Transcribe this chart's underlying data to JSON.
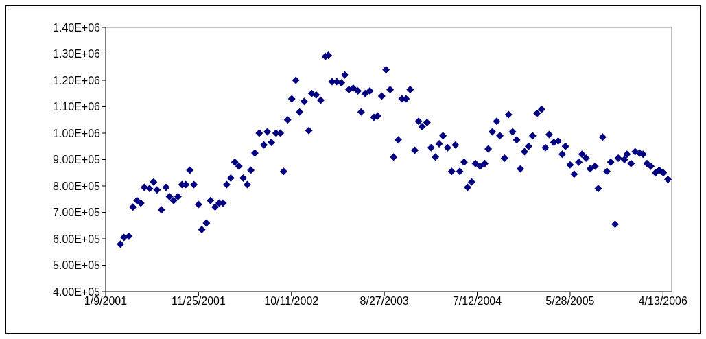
{
  "chart_data": {
    "type": "scatter",
    "marker": "diamond",
    "grid": false,
    "legend": false,
    "xlim": [
      "2001-01-09",
      "2006-05-13"
    ],
    "xticks": [
      {
        "value": "2001-01-09",
        "label": "1/9/2001"
      },
      {
        "value": "2001-11-25",
        "label": "11/25/2001"
      },
      {
        "value": "2002-10-11",
        "label": "10/11/2002"
      },
      {
        "value": "2003-08-27",
        "label": "8/27/2003"
      },
      {
        "value": "2004-07-12",
        "label": "7/12/2004"
      },
      {
        "value": "2005-05-28",
        "label": "5/28/2005"
      },
      {
        "value": "2006-04-13",
        "label": "4/13/2006"
      }
    ],
    "ylim": [
      400000,
      1400000
    ],
    "yticks": [
      {
        "value": 400000,
        "label": "4.00E+05"
      },
      {
        "value": 500000,
        "label": "5.00E+05"
      },
      {
        "value": 600000,
        "label": "6.00E+05"
      },
      {
        "value": 700000,
        "label": "7.00E+05"
      },
      {
        "value": 800000,
        "label": "8.00E+05"
      },
      {
        "value": 900000,
        "label": "9.00E+05"
      },
      {
        "value": 1000000,
        "label": "1.00E+06"
      },
      {
        "value": 1100000,
        "label": "1.10E+06"
      },
      {
        "value": 1200000,
        "label": "1.20E+06"
      },
      {
        "value": 1300000,
        "label": "1.30E+06"
      },
      {
        "value": 1400000,
        "label": "1.40E+06"
      }
    ],
    "series": [
      {
        "color": "#000080",
        "x": [
          "2001-03-01",
          "2001-03-13",
          "2001-03-30",
          "2001-04-13",
          "2001-04-27",
          "2001-05-10",
          "2001-05-22",
          "2001-06-09",
          "2001-06-23",
          "2001-07-05",
          "2001-07-20",
          "2001-08-05",
          "2001-08-17",
          "2001-08-31",
          "2001-09-15",
          "2001-09-29",
          "2001-10-12",
          "2001-10-26",
          "2001-11-09",
          "2001-11-25",
          "2001-12-06",
          "2001-12-22",
          "2002-01-05",
          "2002-01-21",
          "2002-02-04",
          "2002-02-17",
          "2002-03-02",
          "2002-03-16",
          "2002-03-30",
          "2002-04-13",
          "2002-04-28",
          "2002-05-12",
          "2002-05-24",
          "2002-06-07",
          "2002-06-22",
          "2002-07-08",
          "2002-07-20",
          "2002-08-03",
          "2002-08-19",
          "2002-09-03",
          "2002-09-14",
          "2002-09-28",
          "2002-10-12",
          "2002-10-26",
          "2002-11-08",
          "2002-11-24",
          "2002-12-10",
          "2002-12-20",
          "2003-01-04",
          "2003-01-20",
          "2003-02-05",
          "2003-02-15",
          "2003-02-28",
          "2003-03-16",
          "2003-04-01",
          "2003-04-13",
          "2003-04-27",
          "2003-05-12",
          "2003-05-28",
          "2003-06-08",
          "2003-06-22",
          "2003-07-08",
          "2003-07-22",
          "2003-08-04",
          "2003-08-18",
          "2003-09-02",
          "2003-09-16",
          "2003-09-28",
          "2003-10-14",
          "2003-10-27",
          "2003-11-10",
          "2003-11-24",
          "2003-12-10",
          "2003-12-23",
          "2004-01-04",
          "2004-01-21",
          "2004-02-04",
          "2004-02-19",
          "2004-03-03",
          "2004-03-16",
          "2004-04-01",
          "2004-04-15",
          "2004-04-28",
          "2004-05-13",
          "2004-05-28",
          "2004-06-09",
          "2004-06-23",
          "2004-07-06",
          "2004-07-22",
          "2004-08-07",
          "2004-08-19",
          "2004-09-02",
          "2004-09-17",
          "2004-09-28",
          "2004-10-14",
          "2004-10-28",
          "2004-11-11",
          "2004-11-25",
          "2004-12-08",
          "2004-12-22",
          "2005-01-05",
          "2005-01-19",
          "2005-02-03",
          "2005-02-19",
          "2005-03-04",
          "2005-03-17",
          "2005-04-02",
          "2005-04-17",
          "2005-05-01",
          "2005-05-12",
          "2005-05-28",
          "2005-06-11",
          "2005-06-27",
          "2005-07-08",
          "2005-07-22",
          "2005-08-05",
          "2005-08-22",
          "2005-09-02",
          "2005-09-17",
          "2005-10-02",
          "2005-10-15",
          "2005-10-30",
          "2005-11-10",
          "2005-12-01",
          "2005-12-10",
          "2005-12-24",
          "2006-01-07",
          "2006-01-22",
          "2006-02-03",
          "2006-02-17",
          "2006-03-02",
          "2006-03-18",
          "2006-03-31",
          "2006-04-14",
          "2006-04-30"
        ],
        "values": [
          580000,
          605000,
          610000,
          720000,
          745000,
          735000,
          795000,
          790000,
          815000,
          785000,
          710000,
          795000,
          760000,
          745000,
          760000,
          805000,
          805000,
          860000,
          805000,
          730000,
          635000,
          660000,
          745000,
          720000,
          735000,
          735000,
          805000,
          830000,
          890000,
          875000,
          830000,
          805000,
          860000,
          925000,
          1000000,
          955000,
          1005000,
          965000,
          1000000,
          1000000,
          855000,
          1050000,
          1130000,
          1200000,
          1080000,
          1120000,
          1010000,
          1150000,
          1145000,
          1125000,
          1290000,
          1295000,
          1195000,
          1195000,
          1190000,
          1220000,
          1165000,
          1170000,
          1160000,
          1080000,
          1150000,
          1160000,
          1060000,
          1065000,
          1140000,
          1240000,
          1165000,
          910000,
          975000,
          1130000,
          1130000,
          1165000,
          935000,
          1045000,
          1025000,
          1040000,
          945000,
          910000,
          960000,
          990000,
          945000,
          855000,
          955000,
          855000,
          890000,
          795000,
          815000,
          885000,
          875000,
          885000,
          940000,
          1005000,
          1045000,
          990000,
          905000,
          1070000,
          1005000,
          975000,
          865000,
          930000,
          950000,
          990000,
          1075000,
          1090000,
          945000,
          995000,
          965000,
          970000,
          920000,
          950000,
          880000,
          845000,
          890000,
          920000,
          905000,
          865000,
          875000,
          790000,
          985000,
          855000,
          890000,
          655000,
          905000,
          900000,
          920000,
          885000,
          930000,
          925000,
          920000,
          885000,
          875000,
          850000,
          860000,
          850000,
          825000
        ]
      }
    ]
  }
}
